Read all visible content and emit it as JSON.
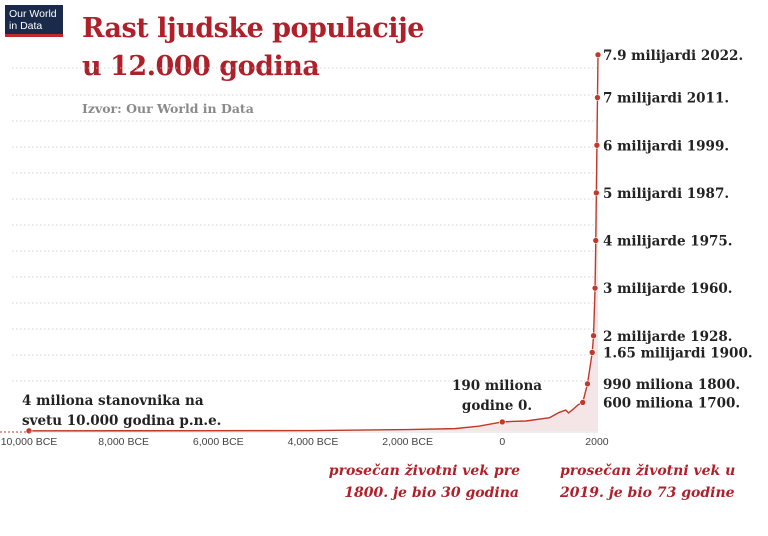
{
  "logo": {
    "line1": "Our World",
    "line2": "in Data"
  },
  "header": {
    "title_line1": "Rast ljudske populacije",
    "title_line2": "u 12.000 godina",
    "source": "Izvor: Our World in Data"
  },
  "annotations": {
    "start_line1": "4 miliona stanovnika na",
    "start_line2": "svetu 10.000 godina p.n.e.",
    "zero_line1": "190 miliona",
    "zero_line2": "godine 0.",
    "life_pre1800_line1": "prosečan životni vek pre",
    "life_pre1800_line2": "1800. je bio 30 godina",
    "life_2019_line1": "prosečan životni vek u",
    "life_2019_line2": "2019. je bio 73 godine"
  },
  "chart_data": {
    "type": "line",
    "x_unit": "year",
    "xlim": [
      -10000,
      2022
    ],
    "x_ticks": [
      {
        "value": -10000,
        "label": "10,000 BCE"
      },
      {
        "value": -8000,
        "label": "8,000 BCE"
      },
      {
        "value": -6000,
        "label": "6,000 BCE"
      },
      {
        "value": -4000,
        "label": "4,000 BCE"
      },
      {
        "value": -2000,
        "label": "2,000 BCE"
      },
      {
        "value": 0,
        "label": "0"
      },
      {
        "value": 2000,
        "label": "2000"
      }
    ],
    "ylim": [
      0,
      8000000000
    ],
    "grid": true,
    "series": [
      {
        "color": "#c0392b",
        "points": [
          {
            "x": -10000,
            "y": 4000000
          },
          {
            "x": -8000,
            "y": 5000000
          },
          {
            "x": -6000,
            "y": 7000000
          },
          {
            "x": -5000,
            "y": 8000000
          },
          {
            "x": -4000,
            "y": 10000000
          },
          {
            "x": -3000,
            "y": 20000000
          },
          {
            "x": -2000,
            "y": 30000000
          },
          {
            "x": -1000,
            "y": 50000000
          },
          {
            "x": -500,
            "y": 100000000
          },
          {
            "x": 0,
            "y": 190000000
          },
          {
            "x": 200,
            "y": 200000000
          },
          {
            "x": 500,
            "y": 210000000
          },
          {
            "x": 1000,
            "y": 280000000
          },
          {
            "x": 1200,
            "y": 390000000
          },
          {
            "x": 1340,
            "y": 440000000
          },
          {
            "x": 1400,
            "y": 380000000
          },
          {
            "x": 1500,
            "y": 460000000
          },
          {
            "x": 1600,
            "y": 550000000
          },
          {
            "x": 1700,
            "y": 600000000
          },
          {
            "x": 1800,
            "y": 990000000
          },
          {
            "x": 1900,
            "y": 1650000000
          },
          {
            "x": 1928,
            "y": 2000000000
          },
          {
            "x": 1960,
            "y": 3000000000
          },
          {
            "x": 1975,
            "y": 4000000000
          },
          {
            "x": 1987,
            "y": 5000000000
          },
          {
            "x": 1999,
            "y": 6000000000
          },
          {
            "x": 2011,
            "y": 7000000000
          },
          {
            "x": 2022,
            "y": 7900000000
          }
        ]
      }
    ],
    "labeled_points": [
      {
        "x": -10000,
        "y": 4000000
      },
      {
        "x": 0,
        "y": 190000000
      },
      {
        "x": 1700,
        "y": 600000000,
        "label": "600 miliona 1700."
      },
      {
        "x": 1800,
        "y": 990000000,
        "label": "990 miliona 1800."
      },
      {
        "x": 1900,
        "y": 1650000000,
        "label": "1.65 milijardi 1900."
      },
      {
        "x": 1928,
        "y": 2000000000,
        "label": "2 milijarde 1928."
      },
      {
        "x": 1960,
        "y": 3000000000,
        "label": "3 milijarde 1960."
      },
      {
        "x": 1975,
        "y": 4000000000,
        "label": "4 milijarde 1975."
      },
      {
        "x": 1987,
        "y": 5000000000,
        "label": "5 milijardi 1987."
      },
      {
        "x": 1999,
        "y": 6000000000,
        "label": "6 milijardi 1999."
      },
      {
        "x": 2011,
        "y": 7000000000,
        "label": "7 milijardi 2011."
      },
      {
        "x": 2022,
        "y": 7900000000,
        "label": "7.9 milijardi 2022."
      }
    ]
  }
}
